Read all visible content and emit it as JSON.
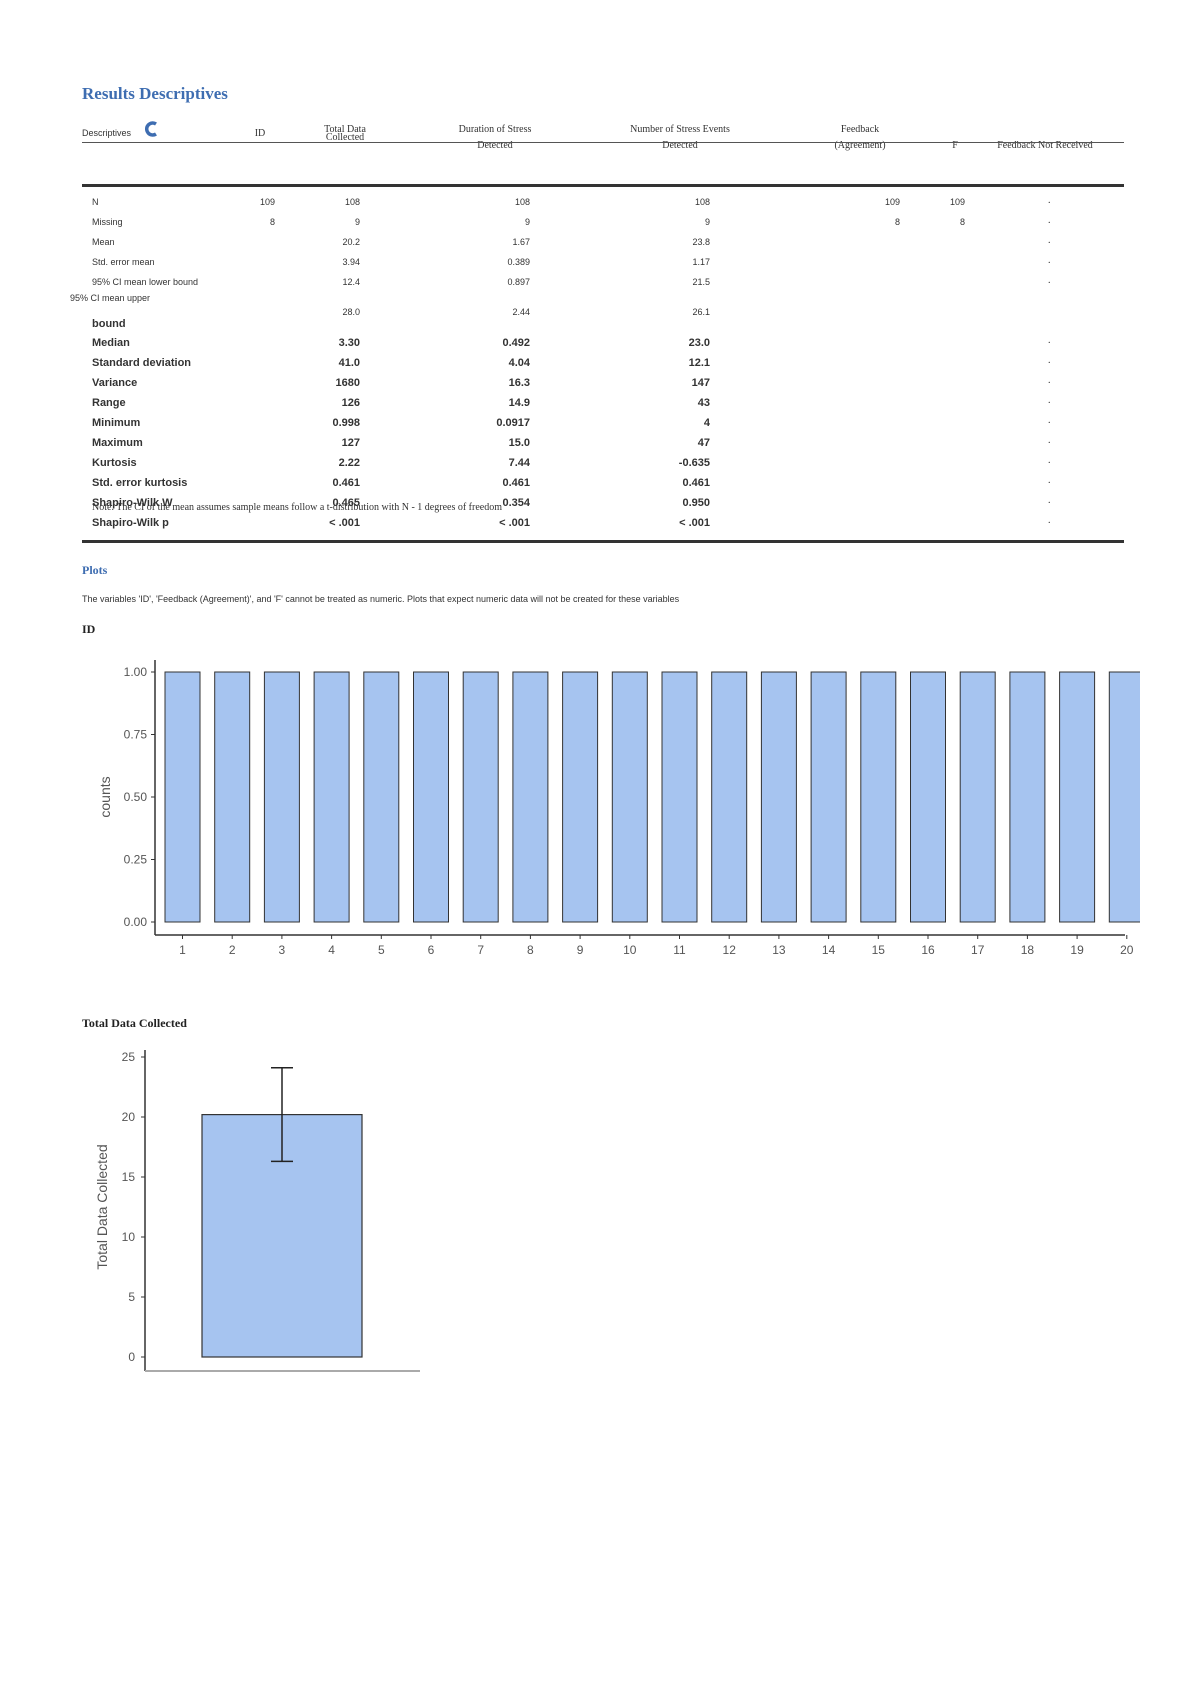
{
  "page": {
    "title": "Results Descriptives",
    "reload_icon": "refresh-icon"
  },
  "table": {
    "corner_label": "Descriptives",
    "columns": [
      {
        "line1": "ID",
        "line2": ""
      },
      {
        "line1": "Total Data",
        "line2": "Collected"
      },
      {
        "line1": "Duration of Stress",
        "line2": "Detected"
      },
      {
        "line1": "Number of Stress Events",
        "line2": "Detected"
      },
      {
        "line1": "Feedback",
        "line2": "(Agreement)"
      },
      {
        "line1": "F",
        "line2": ""
      },
      {
        "line1": "Feedback Not Received",
        "line2": ""
      }
    ],
    "rows": [
      {
        "label": "N",
        "values": [
          "109",
          "108",
          "108",
          "108",
          "109",
          "109",
          "."
        ]
      },
      {
        "label": "Missing",
        "values": [
          "8",
          "9",
          "9",
          "9",
          "8",
          "8",
          "."
        ]
      },
      {
        "label": "Mean",
        "values": [
          "",
          "20.2",
          "1.67",
          "23.8",
          "",
          "",
          "."
        ]
      },
      {
        "label": "Std. error mean",
        "values": [
          "",
          "3.94",
          "0.389",
          "1.17",
          "",
          "",
          "."
        ]
      },
      {
        "label": "95% CI mean lower bound",
        "values": [
          "",
          "12.4",
          "0.897",
          "21.5",
          "",
          "",
          "."
        ]
      },
      {
        "label": "95% CI mean upper",
        "label2": "bound",
        "values": [
          "",
          "28.0",
          "2.44",
          "26.1",
          "",
          "",
          ""
        ]
      },
      {
        "label": "Median",
        "values": [
          "",
          "3.30",
          "0.492",
          "23.0",
          "",
          "",
          "."
        ]
      },
      {
        "label": "Standard deviation",
        "values": [
          "",
          "41.0",
          "4.04",
          "12.1",
          "",
          "",
          "."
        ]
      },
      {
        "label": "Variance",
        "values": [
          "",
          "1680",
          "16.3",
          "147",
          "",
          "",
          "."
        ]
      },
      {
        "label": "Range",
        "values": [
          "",
          "126",
          "14.9",
          "43",
          "",
          "",
          "."
        ]
      },
      {
        "label": "Minimum",
        "values": [
          "",
          "0.998",
          "0.0917",
          "4",
          "",
          "",
          "."
        ]
      },
      {
        "label": "Maximum",
        "values": [
          "",
          "127",
          "15.0",
          "47",
          "",
          "",
          "."
        ]
      },
      {
        "label": "Kurtosis",
        "values": [
          "",
          "2.22",
          "7.44",
          "-0.635",
          "",
          "",
          "."
        ]
      },
      {
        "label": "Std. error kurtosis",
        "values": [
          "",
          "0.461",
          "0.461",
          "0.461",
          "",
          "",
          "."
        ]
      },
      {
        "label": "Shapiro-Wilk W",
        "values": [
          "",
          "0.465",
          "0.354",
          "0.950",
          "",
          "",
          "."
        ]
      },
      {
        "label": "Shapiro-Wilk p",
        "values": [
          "",
          "< .001",
          "< .001",
          "< .001",
          "",
          "",
          "."
        ]
      }
    ],
    "note": "Note. The CI of the mean assumes sample means follow a t-distribution with N - 1 degrees of freedom"
  },
  "plots": {
    "heading": "Plots",
    "caption": "The variables 'ID', 'Feedback (Agreement)', and 'F' cannot be treated as numeric. Plots that expect numeric data will not be created for these variables",
    "id_title": "ID",
    "total_title": "Total Data Collected"
  },
  "colors": {
    "accent": "#3e6db1",
    "bar_fill": "#a6c4f0",
    "bar_stroke": "#333333"
  },
  "chart_data": [
    {
      "type": "bar",
      "title": "ID",
      "xlabel": "",
      "ylabel": "counts",
      "categories": [
        "1",
        "2",
        "3",
        "4",
        "5",
        "6",
        "7",
        "8",
        "9",
        "10",
        "11",
        "12",
        "13",
        "14",
        "15",
        "16",
        "17",
        "18",
        "19",
        "20"
      ],
      "values": [
        1,
        1,
        1,
        1,
        1,
        1,
        1,
        1,
        1,
        1,
        1,
        1,
        1,
        1,
        1,
        1,
        1,
        1,
        1,
        1
      ],
      "yticks": [
        "0.00",
        "0.25",
        "0.50",
        "0.75",
        "1.00"
      ],
      "ylim": [
        0,
        1
      ],
      "grid": false
    },
    {
      "type": "bar",
      "title": "Total Data Collected",
      "xlabel": "",
      "ylabel": "Total Data Collected",
      "categories": [
        ""
      ],
      "values": [
        20.2
      ],
      "error_bar": {
        "lower": 16.3,
        "upper": 24.1
      },
      "yticks": [
        "0",
        "5",
        "10",
        "15",
        "20",
        "25"
      ],
      "ylim": [
        0,
        25
      ],
      "grid": false
    }
  ]
}
